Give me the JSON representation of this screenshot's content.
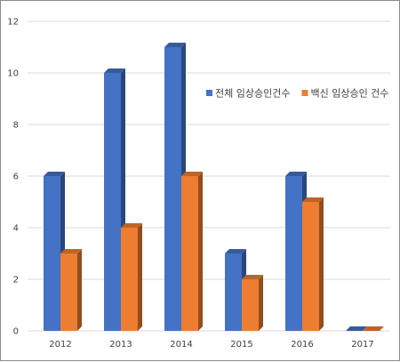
{
  "chart_data": {
    "type": "bar",
    "categories": [
      "2012",
      "2013",
      "2014",
      "2015",
      "2016",
      "2017"
    ],
    "series": [
      {
        "name": "전체 임상승인건수",
        "color": "#4472C4",
        "values": [
          6,
          10,
          11,
          3,
          6,
          0
        ]
      },
      {
        "name": "백신 임상승인 건수",
        "color": "#ED7D31",
        "values": [
          3,
          4,
          6,
          2,
          5,
          0
        ]
      }
    ],
    "title": "",
    "xlabel": "",
    "ylabel": "",
    "ylim": [
      0,
      12
    ],
    "yticks": [
      0,
      2,
      4,
      6,
      8,
      10,
      12
    ],
    "grid": true,
    "legend_position": "right, inside plot",
    "style": "3D clustered column"
  }
}
